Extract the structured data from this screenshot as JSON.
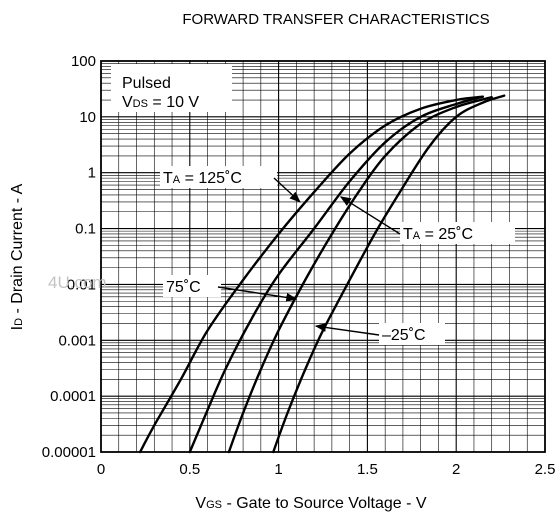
{
  "chart_data": {
    "type": "line",
    "title": "FORWARD TRANSFER CHARACTERISTICS",
    "xlabel": {
      "sym": "V",
      "sub": "GS",
      "text": " - Gate to Source Voltage - V"
    },
    "ylabel": {
      "sym": "I",
      "sub": "D",
      "text": " - Drain Current - A"
    },
    "xlim": [
      0,
      2.5
    ],
    "ylim": [
      1e-05,
      100
    ],
    "y_scale": "log",
    "grid": true,
    "x_ticks": [
      "0",
      "0.5",
      "1",
      "1.5",
      "2",
      "2.5"
    ],
    "x_tick_values": [
      0,
      0.5,
      1,
      1.5,
      2,
      2.5
    ],
    "y_ticks": [
      "0.00001",
      "0.0001",
      "0.001",
      "0.01",
      "0.1",
      "1",
      "10",
      "100"
    ],
    "y_tick_values": [
      1e-05,
      0.0001,
      0.001,
      0.01,
      0.1,
      1,
      10,
      100
    ],
    "conditions": {
      "line1": "Pulsed",
      "line2_sym": "V",
      "line2_sub": "DS",
      "line2_rest": " = 10 V"
    },
    "series": [
      {
        "name": "125°C",
        "x": [
          0.22,
          0.3,
          0.45,
          0.6,
          0.8,
          1.0,
          1.2,
          1.4,
          1.6,
          1.8,
          2.0,
          2.15
        ],
        "y": [
          1e-05,
          3e-05,
          0.0002,
          0.0015,
          0.012,
          0.08,
          0.45,
          2.2,
          7,
          14,
          20,
          23
        ]
      },
      {
        "name": "75°C",
        "x": [
          0.5,
          0.58,
          0.7,
          0.85,
          1.0,
          1.2,
          1.4,
          1.6,
          1.8,
          2.0,
          2.15
        ],
        "y": [
          1e-05,
          4e-05,
          0.0003,
          0.0025,
          0.015,
          0.1,
          0.7,
          3.5,
          10,
          17,
          23
        ]
      },
      {
        "name": "25°C",
        "x": [
          0.72,
          0.8,
          0.9,
          1.0,
          1.15,
          1.3,
          1.45,
          1.6,
          1.8,
          2.0,
          2.2
        ],
        "y": [
          1e-05,
          5e-05,
          0.0003,
          0.0015,
          0.012,
          0.08,
          0.45,
          2.0,
          7.5,
          15,
          22.5
        ]
      },
      {
        "name": "-25°C",
        "x": [
          0.97,
          1.05,
          1.15,
          1.25,
          1.4,
          1.55,
          1.7,
          1.85,
          2.0,
          2.15,
          2.27
        ],
        "y": [
          1e-05,
          5e-05,
          0.0003,
          0.0015,
          0.012,
          0.09,
          0.55,
          3,
          10,
          18,
          24
        ]
      }
    ],
    "annotations": [
      {
        "id": "ta125",
        "sym": "T",
        "sub": "A",
        "rest": " = 125˚C",
        "target_x": 1.12,
        "target_y": 0.3
      },
      {
        "id": "ta25",
        "sym": "T",
        "sub": "A",
        "rest": " = 25˚C",
        "target_x": 1.35,
        "target_y": 0.37
      },
      {
        "id": "t75",
        "sym": "",
        "sub": "",
        "rest": "75˚C",
        "target_x": 1.1,
        "target_y": 0.0055
      },
      {
        "id": "tm25",
        "sym": "",
        "sub": "",
        "rest": "–25˚C",
        "target_x": 1.21,
        "target_y": 0.0018
      }
    ],
    "watermark": "4U.com"
  }
}
